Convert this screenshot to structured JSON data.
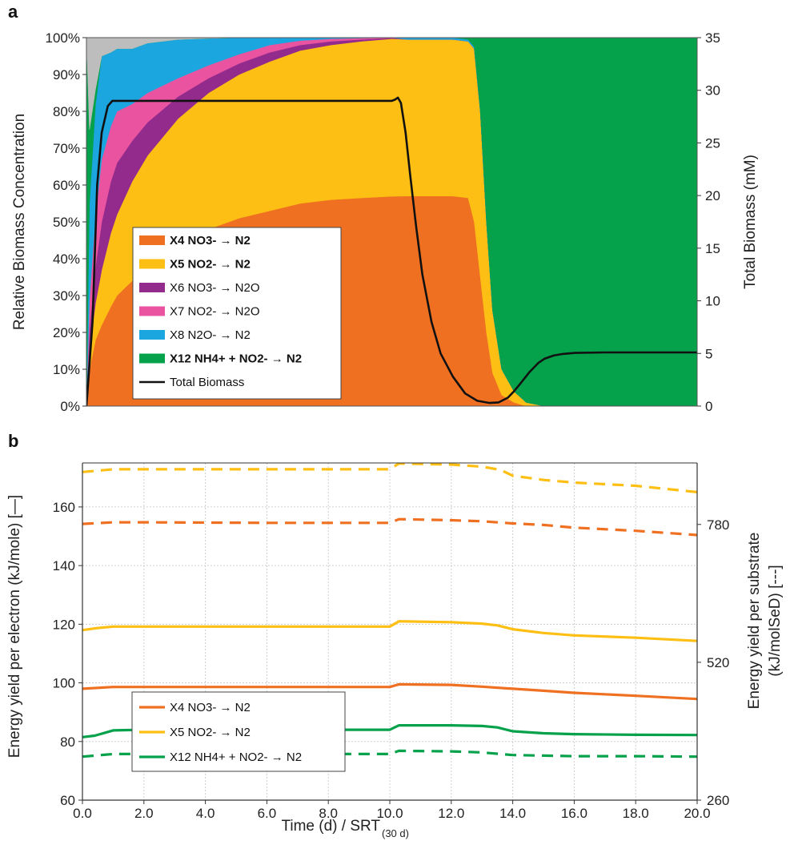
{
  "chart_data": [
    {
      "panel": "a",
      "type": "area",
      "stacked": true,
      "normalized": true,
      "ylabel": "Relative Biomass  Concentration",
      "y2label": "Total Biomass (mM)",
      "xlim": [
        0,
        20
      ],
      "ylim": [
        0,
        100
      ],
      "y2lim": [
        0,
        35
      ],
      "yticks": [
        "0%",
        "10%",
        "20%",
        "30%",
        "40%",
        "50%",
        "60%",
        "70%",
        "80%",
        "90%",
        "100%"
      ],
      "y2ticks": [
        "0",
        "5",
        "10",
        "15",
        "20",
        "25",
        "30",
        "35"
      ],
      "legend_position": "lower-left",
      "x": [
        0,
        0.1,
        0.3,
        0.5,
        0.8,
        1,
        1.5,
        2,
        3,
        4,
        5,
        6,
        7,
        8,
        9,
        10,
        10.5,
        11,
        12,
        12.5,
        12.7,
        12.9,
        13.1,
        13.3,
        13.6,
        14,
        14.4,
        15,
        16,
        17,
        18,
        19,
        20
      ],
      "series": [
        {
          "name": "X4 NO3-  → N2",
          "color": "#f07022",
          "bold": true,
          "values": [
            0,
            10,
            18,
            22,
            27,
            30,
            34,
            38,
            44,
            48,
            51,
            53,
            55,
            56,
            56.5,
            57,
            57,
            57,
            57,
            56.5,
            50,
            35,
            20,
            9,
            3,
            1,
            0,
            0,
            0,
            0,
            0,
            0,
            0
          ]
        },
        {
          "name": "X5 NO2-  → N2",
          "color": "#fdbf14",
          "bold": true,
          "values": [
            0,
            5,
            10,
            15,
            20,
            22,
            27,
            30,
            34,
            37,
            39,
            40.5,
            41.5,
            42,
            42.5,
            42.8,
            42.5,
            42.5,
            42.5,
            42.5,
            47,
            45,
            30,
            17,
            7,
            3,
            1,
            0,
            0,
            0,
            0,
            0,
            0
          ]
        },
        {
          "name": "X6 NO3- → N2O",
          "color": "#922b8c",
          "bold": false,
          "values": [
            0,
            6,
            10,
            13,
            14,
            14,
            11,
            9,
            6,
            4,
            3,
            2.5,
            1.5,
            1,
            0.5,
            0.2,
            0,
            0,
            0,
            0,
            0,
            0,
            0,
            0,
            0,
            0,
            0,
            0,
            0,
            0,
            0,
            0,
            0
          ]
        },
        {
          "name": "X7 NO2- → N2O",
          "color": "#e9539f",
          "bold": false,
          "values": [
            0,
            8,
            14,
            17,
            15,
            14,
            10,
            8,
            5,
            3.5,
            2.5,
            2,
            1.2,
            0.7,
            0.4,
            0.1,
            0,
            0,
            0,
            0,
            0,
            0,
            0,
            0,
            0,
            0,
            0,
            0,
            0,
            0,
            0,
            0,
            0
          ]
        },
        {
          "name": "X8 N2O- → N2",
          "color": "#1ba6e0",
          "bold": false,
          "values": [
            0,
            26,
            30,
            28,
            20,
            17,
            15,
            13.5,
            10.5,
            7.3,
            4.5,
            2,
            0.8,
            0.3,
            0.1,
            0,
            0.5,
            0.5,
            0.5,
            0.5,
            0.5,
            0,
            0,
            0,
            0,
            0,
            0,
            0,
            0,
            0,
            0,
            0,
            0
          ]
        },
        {
          "name": "X12 NH4+ + NO2- → N2",
          "color": "#05a14b",
          "bold": true,
          "values": [
            100,
            20,
            4,
            0,
            0,
            0,
            0,
            0,
            0,
            0,
            0,
            0,
            0,
            0,
            0,
            0,
            0,
            0,
            0,
            0.5,
            2.5,
            20,
            50,
            74,
            90,
            96,
            99,
            100,
            100,
            100,
            100,
            100,
            100
          ]
        },
        {
          "name": "",
          "color": "#bdbdbd",
          "bold": false,
          "values": [
            0,
            25,
            14,
            5,
            4,
            3,
            3,
            1.5,
            0.5,
            0.2,
            0,
            0,
            0,
            0,
            0,
            0,
            0,
            0,
            0,
            0,
            0,
            0,
            0,
            0,
            0,
            0,
            0,
            0,
            0,
            0,
            0,
            0,
            0
          ]
        }
      ],
      "line": {
        "name": "Total Biomass",
        "color": "#111111",
        "axis": "right",
        "x": [
          0,
          0.2,
          0.35,
          0.5,
          0.7,
          0.85,
          1,
          2,
          4,
          6,
          8,
          10,
          10.1,
          10.2,
          10.3,
          10.45,
          10.6,
          10.8,
          11,
          11.3,
          11.6,
          12,
          12.4,
          12.8,
          13.2,
          13.5,
          13.8,
          14,
          14.2,
          14.5,
          14.8,
          15,
          15.3,
          15.6,
          16,
          17,
          18,
          20
        ],
        "values": [
          0,
          8,
          21,
          26,
          28.5,
          29,
          29,
          29,
          29,
          29,
          29,
          29,
          29.1,
          29.3,
          28.8,
          26,
          22,
          17,
          12.5,
          8,
          5,
          2.8,
          1.2,
          0.5,
          0.3,
          0.35,
          0.8,
          1.4,
          2.1,
          3.2,
          4.1,
          4.5,
          4.8,
          4.95,
          5.05,
          5.1,
          5.1,
          5.1
        ]
      }
    },
    {
      "panel": "b",
      "type": "line",
      "xlabel": "Time (d) / SRT",
      "xlabel_sub": "(30 d)",
      "ylabel": "Energy yield per electron (kJ/mole) [—]",
      "y2label_line1": "Energy yield per substrate",
      "y2label_line2": "(kJ/molSeD) [---]",
      "xlim": [
        0,
        20
      ],
      "ylim": [
        60,
        175
      ],
      "y2lim": [
        260,
        896
      ],
      "xticks": [
        "0.0",
        "2.0",
        "4.0",
        "6.0",
        "8.0",
        "10.0",
        "12.0",
        "14.0",
        "16.0",
        "18.0",
        "20.0"
      ],
      "yticks": [
        "60",
        "80",
        "100",
        "120",
        "140",
        "160"
      ],
      "y2ticks": [
        "260",
        "520",
        "780"
      ],
      "grid": true,
      "legend_position": "lower-left",
      "legend": [
        {
          "name": "X4 NO3-  → N2",
          "color": "#f07022"
        },
        {
          "name": "X5 NO2-  → N2",
          "color": "#fdbf14"
        },
        {
          "name": "X12 NH4+ + NO2- → N2",
          "color": "#05a14b"
        }
      ],
      "series": [
        {
          "series": "X5 NO2-  → N2",
          "style": "dashed",
          "color": "#fdbf14",
          "axis": "right",
          "x": [
            0,
            1,
            2,
            6,
            10,
            10.3,
            12,
            13,
            13.6,
            14,
            15,
            16,
            18,
            20
          ],
          "values": [
            879,
            884,
            884,
            884,
            884,
            895,
            893,
            889,
            883,
            872,
            864,
            859,
            853,
            841
          ]
        },
        {
          "series": "X4 NO3-  → N2",
          "style": "dashed",
          "color": "#f07022",
          "axis": "right",
          "x": [
            0,
            1,
            2,
            6,
            10,
            10.3,
            12,
            13,
            14,
            15,
            16,
            18,
            20
          ],
          "values": [
            781,
            784,
            784,
            783,
            783,
            790,
            788,
            786,
            782,
            779,
            774,
            768,
            760
          ]
        },
        {
          "series": "X5 NO2-  → N2",
          "style": "solid",
          "color": "#fdbf14",
          "axis": "left",
          "x": [
            0,
            0.5,
            1,
            2,
            6,
            10,
            10.3,
            12,
            13,
            13.5,
            14,
            15,
            16,
            18,
            20
          ],
          "values": [
            118,
            118.7,
            119.2,
            119.2,
            119.2,
            119.2,
            121,
            120.7,
            120.2,
            119.6,
            118.3,
            117,
            116.2,
            115.4,
            114.3
          ]
        },
        {
          "series": "X4 NO3-  → N2",
          "style": "solid",
          "color": "#f07022",
          "axis": "left",
          "x": [
            0,
            0.5,
            1,
            2,
            6,
            10,
            10.3,
            12,
            13,
            14,
            15,
            16,
            18,
            20
          ],
          "values": [
            98,
            98.3,
            98.6,
            98.6,
            98.6,
            98.6,
            99.5,
            99.3,
            98.7,
            98,
            97.3,
            96.6,
            95.6,
            94.5
          ]
        },
        {
          "series": "X12 NH4+ + NO2- → N2",
          "style": "solid",
          "color": "#05a14b",
          "axis": "left",
          "x": [
            0,
            0.4,
            1,
            2,
            6,
            10,
            10.3,
            12,
            13,
            13.5,
            14,
            15,
            16,
            18,
            20
          ],
          "values": [
            81.5,
            82,
            83.8,
            84,
            84,
            84,
            85.5,
            85.5,
            85.3,
            84.8,
            83.5,
            82.8,
            82.5,
            82.3,
            82.2
          ]
        },
        {
          "series": "X12 NH4+ + NO2- → N2",
          "style": "dashed",
          "color": "#05a14b",
          "axis": "right",
          "x": [
            0,
            1,
            2,
            6,
            10,
            10.3,
            12,
            13,
            14,
            15,
            16,
            18,
            20
          ],
          "values": [
            342,
            347,
            347,
            347,
            347,
            353,
            352,
            350,
            345,
            344,
            343,
            343,
            342
          ]
        }
      ]
    }
  ]
}
